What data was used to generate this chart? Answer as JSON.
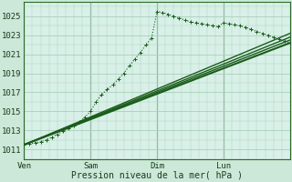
{
  "background_color": "#cce8d8",
  "plot_bg_color": "#d8f0e8",
  "grid_color": "#aacfbb",
  "line_color": "#1a5c1a",
  "marker_color": "#1a5c1a",
  "xlabel": "Pression niveau de la mer( hPa )",
  "xlim": [
    0,
    96
  ],
  "ylim": [
    1010.5,
    1026.5
  ],
  "yticks": [
    1011,
    1013,
    1015,
    1017,
    1019,
    1021,
    1023,
    1025
  ],
  "xtick_labels": [
    "Ven",
    "Sam",
    "Dim",
    "Lun"
  ],
  "xtick_positions": [
    0,
    24,
    48,
    72
  ],
  "series": [
    {
      "x": [
        0,
        2,
        4,
        6,
        8,
        10,
        12,
        14,
        16,
        18,
        20,
        22,
        24,
        26,
        28,
        30,
        32,
        34,
        36,
        38,
        40,
        42,
        44,
        46,
        48,
        50,
        52,
        54,
        56,
        58,
        60,
        62,
        64,
        66,
        68,
        70,
        72,
        74,
        76,
        78,
        80,
        82,
        84,
        86,
        88,
        90,
        92,
        94,
        96
      ],
      "y": [
        1011.5,
        1011.6,
        1011.7,
        1011.8,
        1012.0,
        1012.3,
        1012.6,
        1012.9,
        1013.2,
        1013.5,
        1013.9,
        1014.4,
        1015.0,
        1016.0,
        1016.8,
        1017.3,
        1017.8,
        1018.4,
        1019.0,
        1019.8,
        1020.5,
        1021.2,
        1022.0,
        1022.7,
        1025.5,
        1025.4,
        1025.2,
        1025.0,
        1024.8,
        1024.6,
        1024.4,
        1024.3,
        1024.2,
        1024.1,
        1024.0,
        1023.9,
        1024.3,
        1024.2,
        1024.1,
        1024.0,
        1023.8,
        1023.6,
        1023.4,
        1023.2,
        1023.0,
        1022.8,
        1022.6,
        1022.4,
        1022.2
      ],
      "style": "dotted_marker",
      "linewidth": 0.8
    },
    {
      "x": [
        0,
        96
      ],
      "y": [
        1011.5,
        1022.2
      ],
      "style": "solid",
      "linewidth": 1.5
    },
    {
      "x": [
        0,
        96
      ],
      "y": [
        1011.5,
        1022.5
      ],
      "style": "solid",
      "linewidth": 1.0
    },
    {
      "x": [
        0,
        96
      ],
      "y": [
        1011.5,
        1022.8
      ],
      "style": "solid",
      "linewidth": 1.0
    },
    {
      "x": [
        0,
        96
      ],
      "y": [
        1011.5,
        1023.2
      ],
      "style": "solid",
      "linewidth": 1.0
    }
  ]
}
